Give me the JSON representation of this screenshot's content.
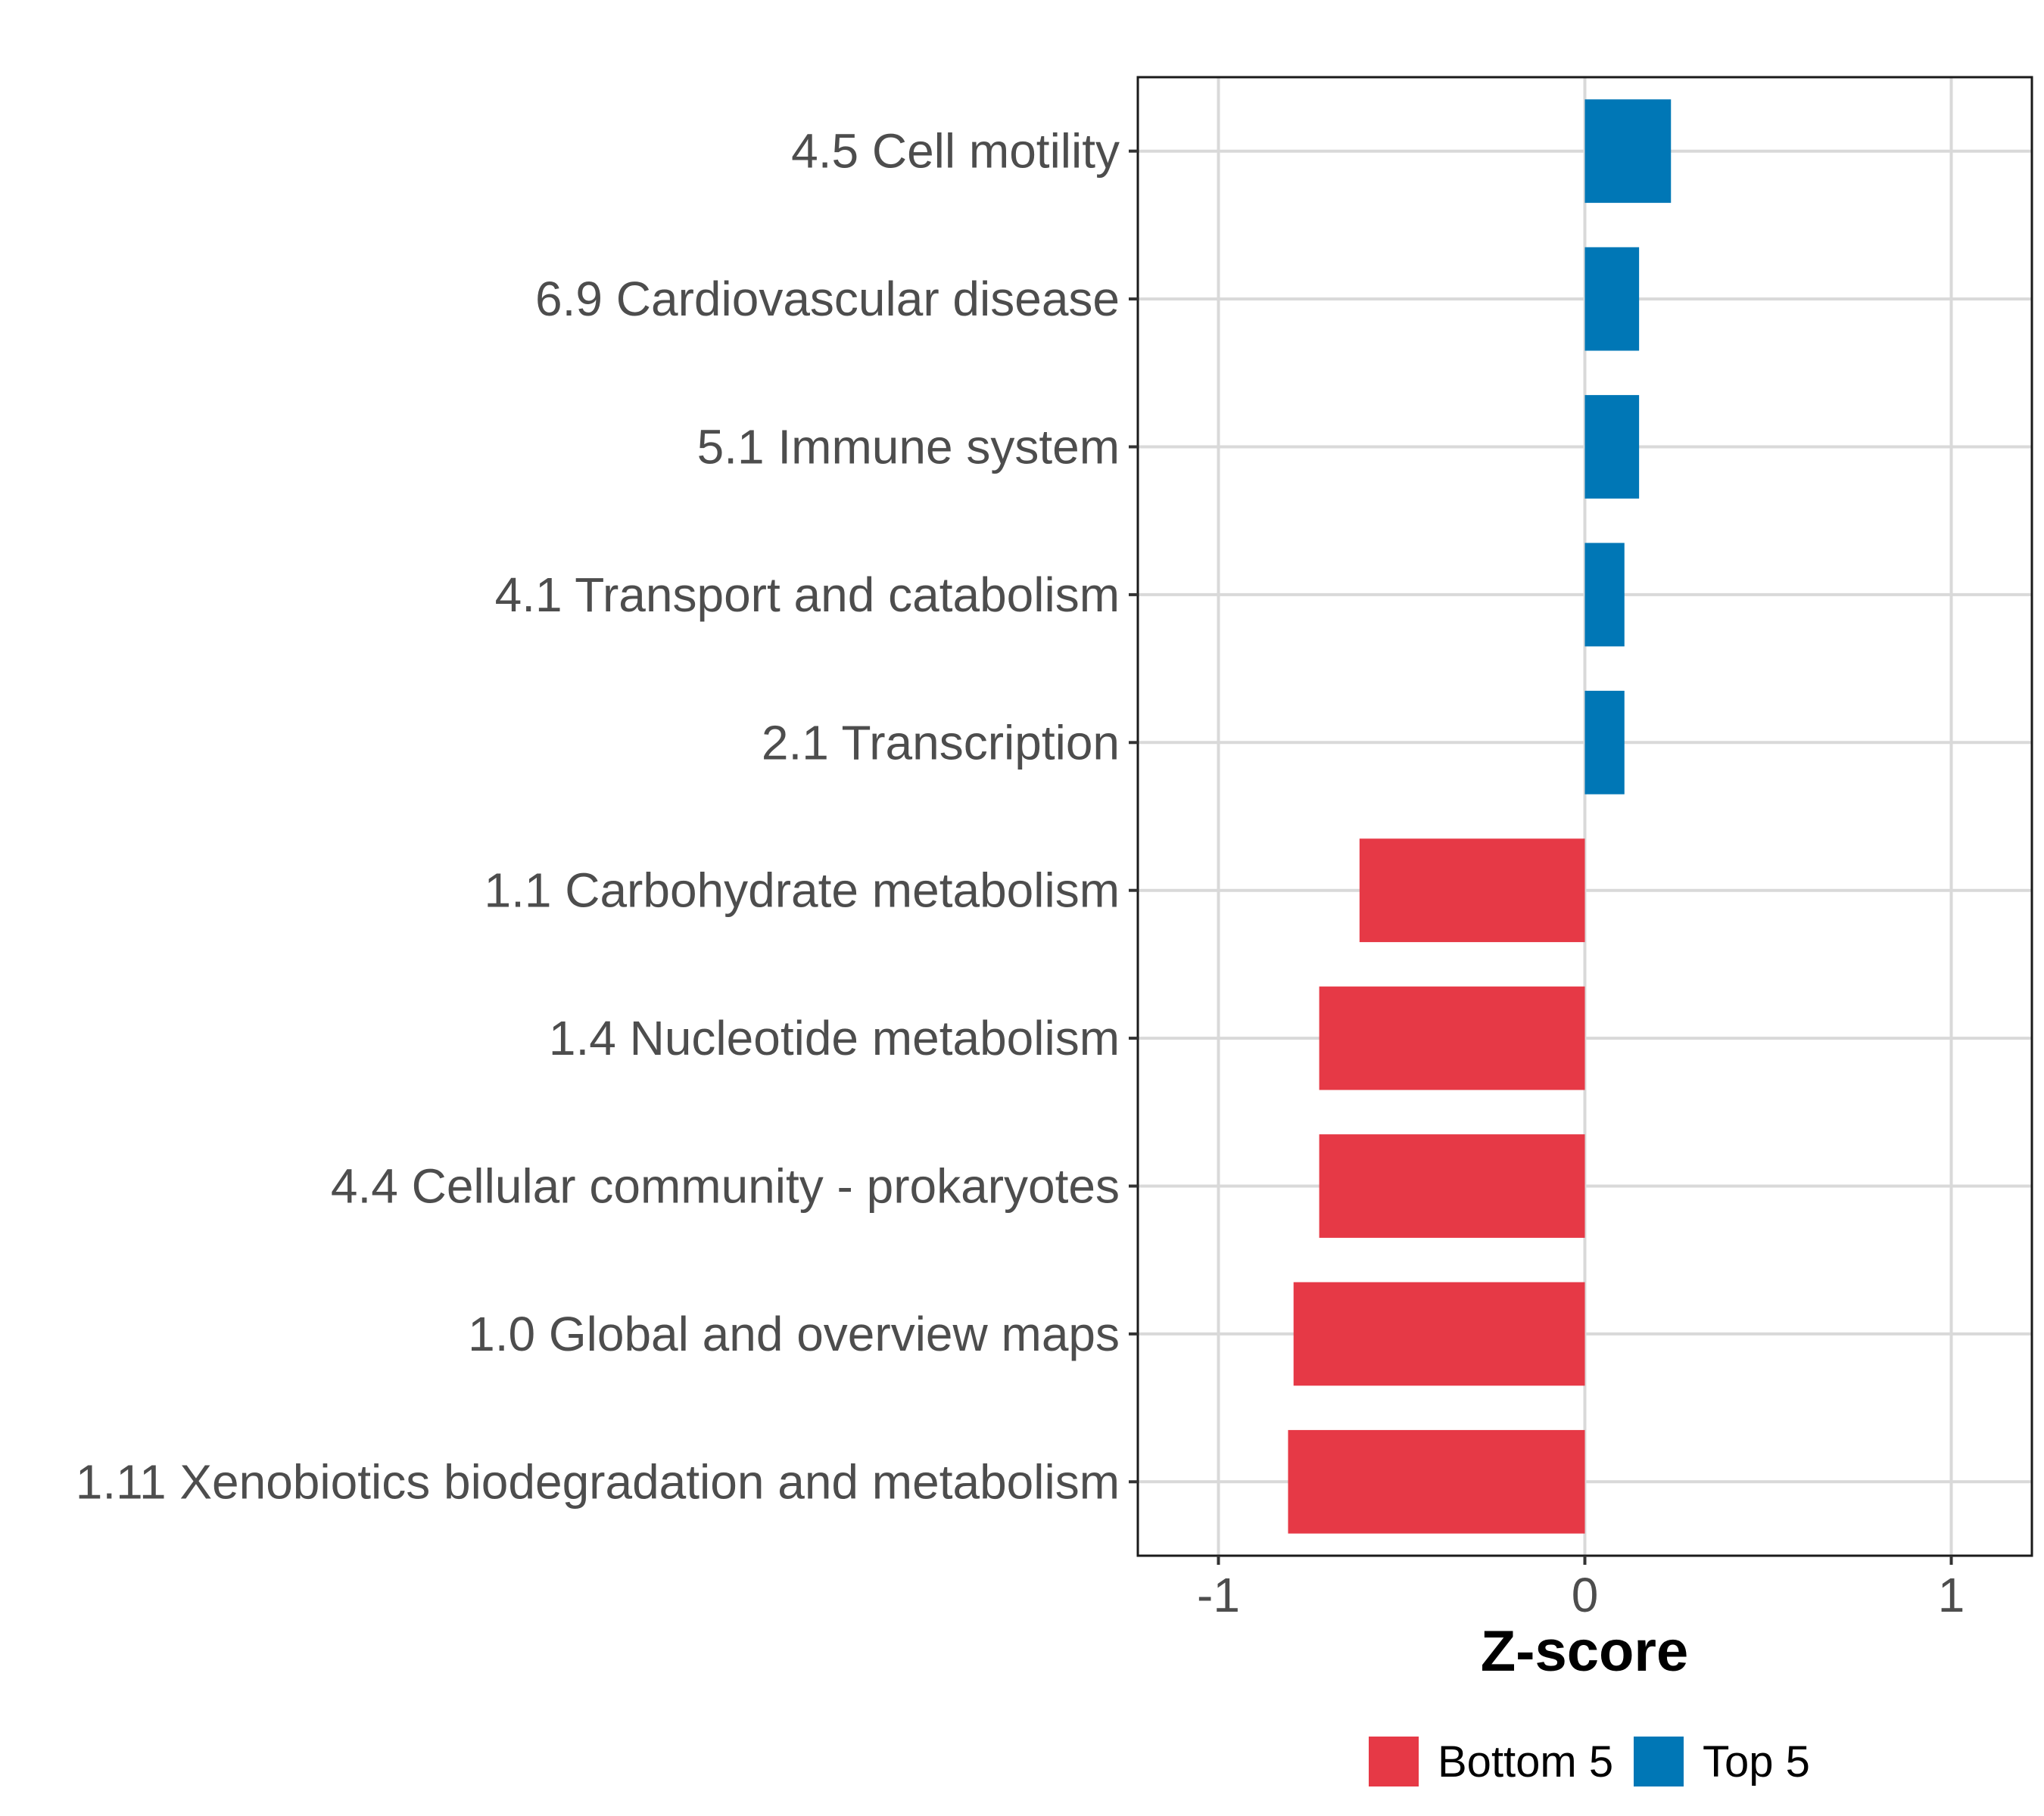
{
  "chart_data": {
    "type": "bar",
    "orientation": "horizontal",
    "xlabel": "Z-score",
    "ylabel": "",
    "xlim": [
      -1.22,
      1.22
    ],
    "xticks": [
      -1,
      0,
      1
    ],
    "xtick_labels": [
      "-1",
      "0",
      "1"
    ],
    "grid": true,
    "legend_position": "bottom",
    "categories": [
      "4.5 Cell motility",
      "6.9 Cardiovascular disease",
      "5.1 Immune system",
      "4.1 Transport and catabolism",
      "2.1 Transcription",
      "1.1 Carbohydrate metabolism",
      "1.4 Nucleotide metabolism",
      "4.4 Cellular community - prokaryotes",
      "1.0 Global and overview maps",
      "1.11 Xenobiotics biodegradation and metabolism"
    ],
    "values": [
      0.235,
      0.148,
      0.148,
      0.108,
      0.108,
      -0.615,
      -0.725,
      -0.725,
      -0.795,
      -0.81
    ],
    "groups": [
      "Top 5",
      "Top 5",
      "Top 5",
      "Top 5",
      "Top 5",
      "Bottom 5",
      "Bottom 5",
      "Bottom 5",
      "Bottom 5",
      "Bottom 5"
    ],
    "legend": [
      {
        "name": "Bottom 5",
        "color": "#e63946"
      },
      {
        "name": "Top 5",
        "color": "#0077b6"
      }
    ]
  }
}
